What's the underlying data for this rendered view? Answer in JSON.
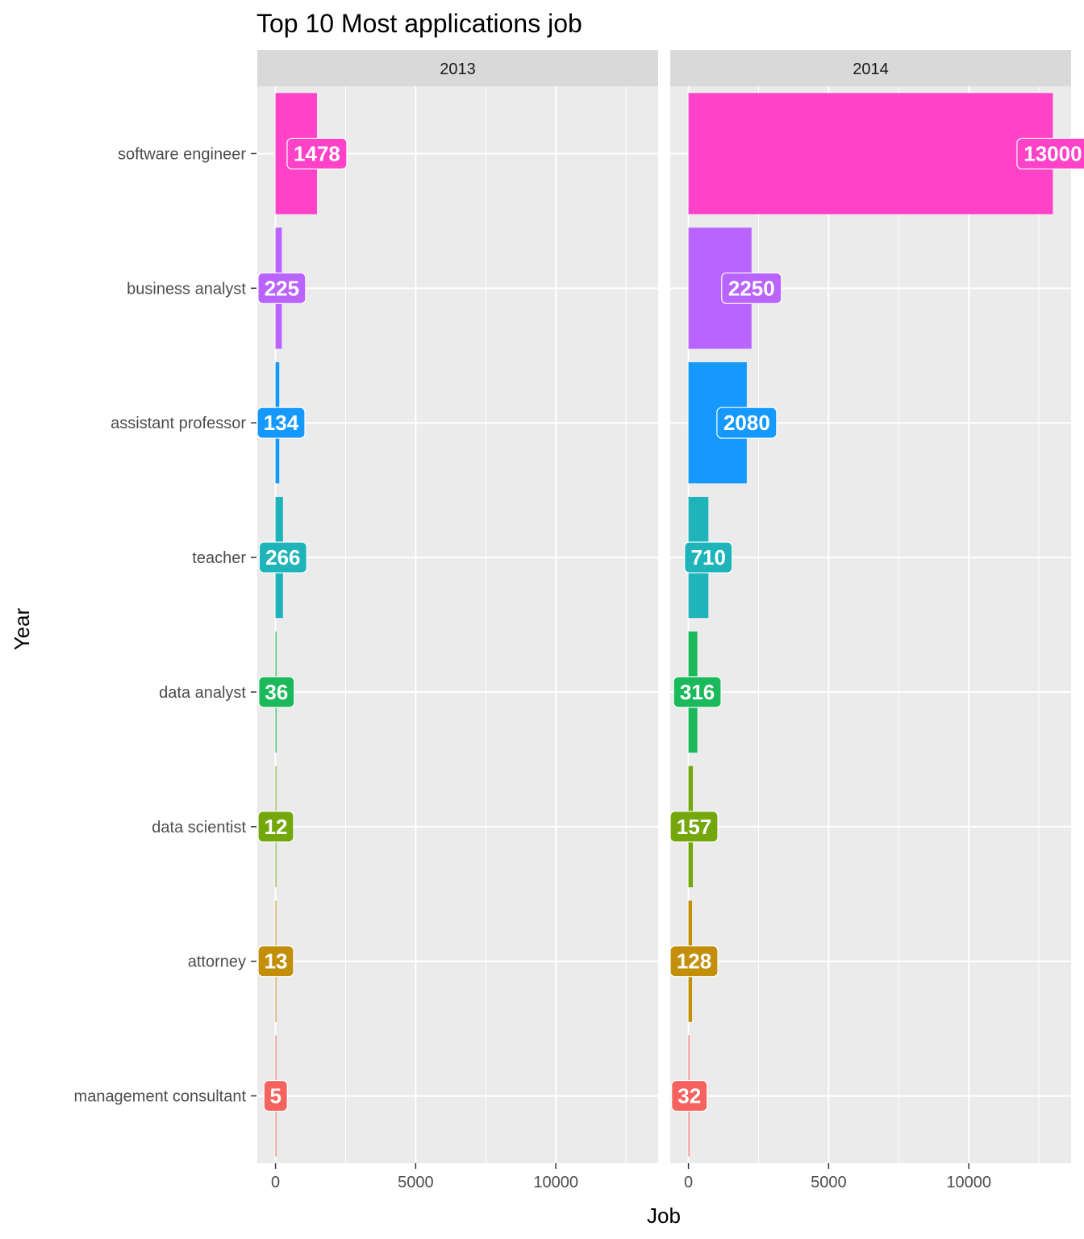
{
  "chart_data": {
    "type": "bar",
    "orientation": "horizontal",
    "title": "Top 10 Most applications job",
    "xlabel": "Job",
    "ylabel": "Year",
    "xlim": [
      -650,
      13650
    ],
    "xticks": [
      0,
      5000,
      10000
    ],
    "grid": true,
    "legend": "none",
    "facets": [
      "2013",
      "2014"
    ],
    "categories": [
      "software engineer",
      "business analyst",
      "assistant professor",
      "teacher",
      "data analyst",
      "data scientist",
      "attorney",
      "management consultant"
    ],
    "colors": [
      "#FF42C8",
      "#B964FF",
      "#1599FF",
      "#1EB4B9",
      "#1BB95B",
      "#73A70B",
      "#C38F0B",
      "#F6625E"
    ],
    "series": [
      {
        "facet": "2013",
        "values": [
          1478,
          225,
          134,
          266,
          36,
          12,
          13,
          5
        ],
        "labels": [
          "1478",
          "225",
          "134",
          "266",
          "36",
          "12",
          "13",
          "5"
        ]
      },
      {
        "facet": "2014",
        "values": [
          13000,
          2250,
          2080,
          710,
          316,
          157,
          128,
          32
        ],
        "labels": [
          "13000",
          "2250",
          "2080",
          "710",
          "316",
          "157",
          "128",
          "32"
        ]
      }
    ]
  }
}
